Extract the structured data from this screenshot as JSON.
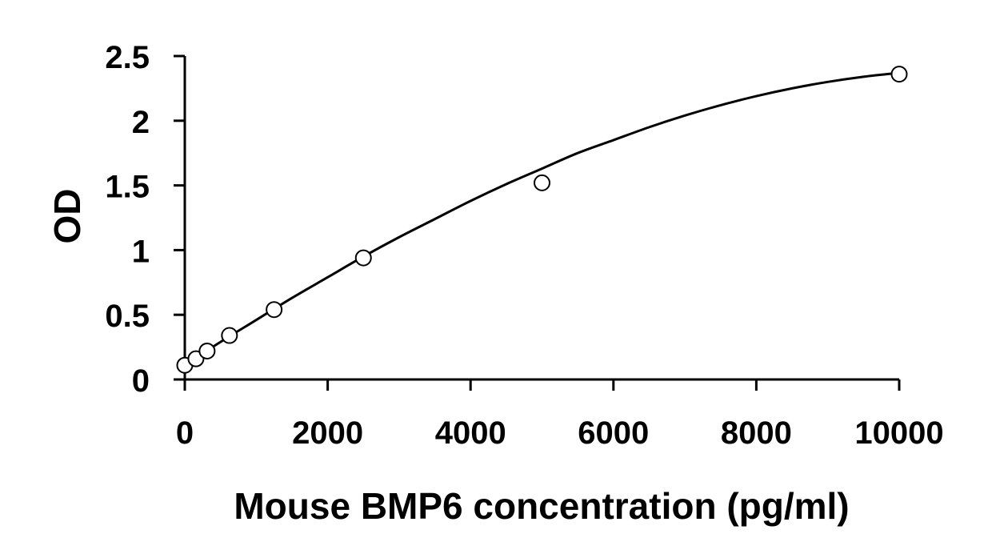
{
  "chart_data": {
    "type": "scatter",
    "title": "",
    "xlabel": "Mouse BMP6 concentration (pg/ml)",
    "ylabel": "OD",
    "xlim": [
      0,
      10000
    ],
    "ylim": [
      0,
      2.5
    ],
    "x_ticks": [
      0,
      2000,
      4000,
      6000,
      8000,
      10000
    ],
    "y_ticks": [
      0,
      0.5,
      1,
      1.5,
      2,
      2.5
    ],
    "x_tick_labels": [
      "0",
      "2000",
      "4000",
      "6000",
      "8000",
      "10000"
    ],
    "y_tick_labels": [
      "0",
      "0.5",
      "1",
      "1.5",
      "2",
      "2.5"
    ],
    "grid": false,
    "legend": "none",
    "marker": "open-circle",
    "series": [
      {
        "x": [
          0,
          156,
          312,
          625,
          1250,
          2500,
          5000,
          10000
        ],
        "y": [
          0.11,
          0.16,
          0.22,
          0.34,
          0.54,
          0.94,
          1.52,
          2.36
        ]
      }
    ],
    "fit_curve": {
      "type": "smooth",
      "x": [
        0,
        500,
        1000,
        1500,
        2000,
        2500,
        3000,
        3500,
        4000,
        4500,
        5000,
        5500,
        6000,
        6500,
        7000,
        7500,
        8000,
        8500,
        9000,
        9500,
        10000
      ],
      "y": [
        0.11,
        0.29,
        0.46,
        0.63,
        0.79,
        0.95,
        1.1,
        1.24,
        1.38,
        1.51,
        1.63,
        1.75,
        1.85,
        1.95,
        2.04,
        2.12,
        2.19,
        2.25,
        2.3,
        2.34,
        2.37
      ]
    }
  }
}
